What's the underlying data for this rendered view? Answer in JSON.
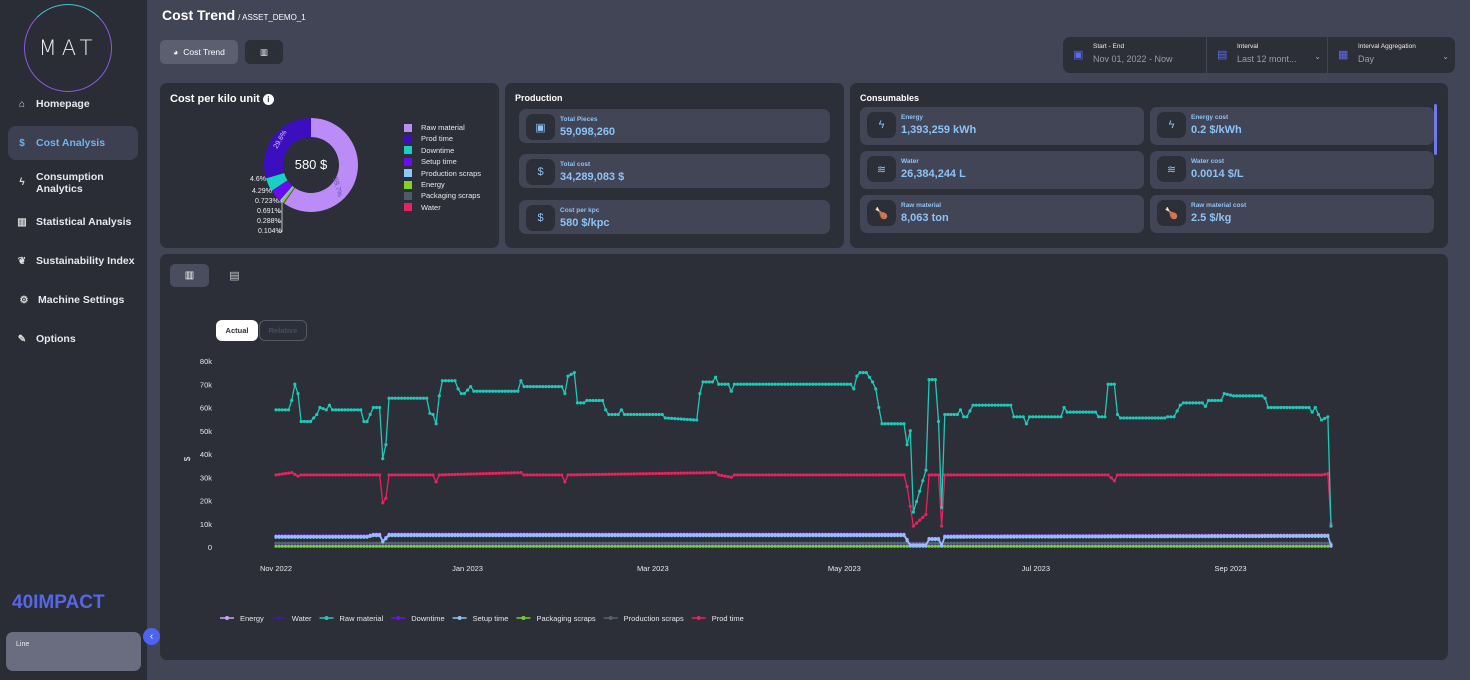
{
  "sidebar": {
    "logo": "MAT",
    "items": [
      {
        "label": "Homepage",
        "icon": "home-icon",
        "glyph": "⌂"
      },
      {
        "label": "Cost Analysis",
        "icon": "money-bag-icon",
        "glyph": "💰",
        "active": true
      },
      {
        "label": "Consumption Analytics",
        "icon": "bolt-icon",
        "glyph": "ϟ"
      },
      {
        "label": "Statistical Analysis",
        "icon": "bar-chart-icon",
        "glyph": "▥"
      },
      {
        "label": "Sustainability Index",
        "icon": "leaf-icon",
        "glyph": "❦"
      },
      {
        "label": "Machine Settings",
        "icon": "gear-icon",
        "glyph": "⚙"
      },
      {
        "label": "Options",
        "icon": "wrench-icon",
        "glyph": "🔧"
      }
    ],
    "brand": "40IMPACT",
    "line_box": "Line",
    "collapse_glyph": "‹"
  },
  "header": {
    "title": "Cost Trend",
    "asset": "/ ASSET_DEMO_1",
    "cost_trend_btn": "Cost Trend"
  },
  "filters": {
    "start_end": {
      "label": "Start - End",
      "value": "Nov 01, 2022 - Now"
    },
    "interval": {
      "label": "Interval",
      "value": "Last 12 mont..."
    },
    "aggregation": {
      "label": "Interval Aggregation",
      "value": "Day"
    }
  },
  "cost_per_kilo": {
    "title": "Cost per kilo unit",
    "center": "580 $",
    "colors": {
      "Raw material": "#bb8cf7",
      "Prod time": "#3b0fbf",
      "Downtime": "#18cfc0",
      "Setup time": "#6a0bf0",
      "Production scraps": "#8cc8fb",
      "Energy": "#7ed321",
      "Packaging scraps": "#4b5b67",
      "Water": "#e8225f"
    },
    "slices": [
      {
        "name": "Raw material",
        "pct": 59.7,
        "label": "59.7%"
      },
      {
        "name": "Water",
        "pct": 0.104,
        "label": "0.104%"
      },
      {
        "name": "Packaging scraps",
        "pct": 0.288,
        "label": "0.288%"
      },
      {
        "name": "Energy",
        "pct": 0.691,
        "label": "0.691%"
      },
      {
        "name": "Production scraps",
        "pct": 0.723,
        "label": "0.723%"
      },
      {
        "name": "Setup time",
        "pct": 4.29,
        "label": "4.29%"
      },
      {
        "name": "Downtime",
        "pct": 4.6,
        "label": "4.6%"
      },
      {
        "name": "Prod time",
        "pct": 29.6,
        "label": "29.6%"
      }
    ],
    "legend": [
      "Raw material",
      "Prod time",
      "Downtime",
      "Setup time",
      "Production scraps",
      "Energy",
      "Packaging scraps",
      "Water"
    ]
  },
  "production": {
    "title": "Production",
    "cards": [
      {
        "label": "Total Pieces",
        "value": "59,098,260",
        "icon": "archive-box-icon",
        "glyph": "▣"
      },
      {
        "label": "Total cost",
        "value": "34,289,083 $",
        "icon": "money-bag-icon",
        "glyph": "$"
      },
      {
        "label": "Cost per kpc",
        "value": "580 $/kpc",
        "icon": "money-bag-icon",
        "glyph": "$"
      }
    ]
  },
  "consumables": {
    "title": "Consumables",
    "cards": [
      {
        "label": "Energy",
        "value": "1,393,259 kWh",
        "icon": "bolt-icon",
        "glyph": "ϟ"
      },
      {
        "label": "Energy cost",
        "value": "0.2 $/kWh",
        "icon": "bolt-icon",
        "glyph": "ϟ"
      },
      {
        "label": "Water",
        "value": "26,384,244 L",
        "icon": "water-waves-icon",
        "glyph": "≋"
      },
      {
        "label": "Water cost",
        "value": "0.0014 $/L",
        "icon": "water-waves-icon",
        "glyph": "≋"
      },
      {
        "label": "Raw material",
        "value": "8,063 ton",
        "icon": "chicken-icon",
        "glyph": "🍗"
      },
      {
        "label": "Raw material cost",
        "value": "2.5 $/kg",
        "icon": "chicken-icon",
        "glyph": "🍗"
      }
    ]
  },
  "chart_panel": {
    "actual": "Actual",
    "relative": "Relative"
  },
  "chart_data": {
    "type": "line",
    "ylabel": "$",
    "ylim": [
      0,
      80000
    ],
    "yticks": [
      {
        "v": 0,
        "t": "0"
      },
      {
        "v": 10000,
        "t": "10k"
      },
      {
        "v": 20000,
        "t": "20k"
      },
      {
        "v": 30000,
        "t": "30k"
      },
      {
        "v": 40000,
        "t": "40k"
      },
      {
        "v": 50000,
        "t": "50k"
      },
      {
        "v": 60000,
        "t": "60k"
      },
      {
        "v": 70000,
        "t": "70k"
      },
      {
        "v": 80000,
        "t": "80k"
      }
    ],
    "xlim": [
      "2022-11-01",
      "2023-10-03"
    ],
    "xticks": [
      {
        "d": "2022-11-01",
        "t": "Nov 2022"
      },
      {
        "d": "2023-01-01",
        "t": "Jan 2023"
      },
      {
        "d": "2023-03-01",
        "t": "Mar 2023"
      },
      {
        "d": "2023-05-01",
        "t": "May 2023"
      },
      {
        "d": "2023-07-01",
        "t": "Jul 2023"
      },
      {
        "d": "2023-09-01",
        "t": "Sep 2023"
      }
    ],
    "legend_position": "bottom",
    "series": [
      {
        "name": "Energy",
        "color": "#c9a6f5",
        "points": [
          [
            "2022-11-01",
            4.6
          ],
          [
            "2022-11-30",
            4.6
          ],
          [
            "2022-12-02",
            5.4
          ],
          [
            "2022-12-04",
            5.4
          ],
          [
            "2022-12-05",
            2.6
          ],
          [
            "2022-12-07",
            5.4
          ],
          [
            "2023-05-20",
            5.4
          ],
          [
            "2023-05-22",
            1.0
          ],
          [
            "2023-05-27",
            1.0
          ],
          [
            "2023-05-28",
            3.6
          ],
          [
            "2023-05-31",
            3.6
          ],
          [
            "2023-06-01",
            1.0
          ],
          [
            "2023-06-02",
            4.6
          ],
          [
            "2023-10-02",
            5.0
          ],
          [
            "2023-10-03",
            1.0
          ]
        ]
      },
      {
        "name": "Water",
        "color": "#3b1d9e",
        "points": [
          [
            "2022-11-01",
            1.0
          ],
          [
            "2023-10-03",
            1.0
          ]
        ]
      },
      {
        "name": "Raw material",
        "color": "#1fc9b8",
        "points": [
          [
            "2022-11-01",
            59
          ],
          [
            "2022-11-05",
            59
          ],
          [
            "2022-11-06",
            63
          ],
          [
            "2022-11-07",
            70
          ],
          [
            "2022-11-08",
            66
          ],
          [
            "2022-11-09",
            54
          ],
          [
            "2022-11-12",
            54
          ],
          [
            "2022-11-14",
            57
          ],
          [
            "2022-11-15",
            60
          ],
          [
            "2022-11-17",
            59
          ],
          [
            "2022-11-18",
            61
          ],
          [
            "2022-11-19",
            59
          ],
          [
            "2022-11-28",
            59
          ],
          [
            "2022-11-29",
            54
          ],
          [
            "2022-11-30",
            54
          ],
          [
            "2022-12-02",
            60
          ],
          [
            "2022-12-04",
            60
          ],
          [
            "2022-12-05",
            38
          ],
          [
            "2022-12-06",
            44
          ],
          [
            "2022-12-07",
            64
          ],
          [
            "2022-12-19",
            64
          ],
          [
            "2022-12-20",
            57.5
          ],
          [
            "2022-12-21",
            57
          ],
          [
            "2022-12-22",
            53
          ],
          [
            "2022-12-23",
            65
          ],
          [
            "2022-12-24",
            71.5
          ],
          [
            "2022-12-28",
            71.5
          ],
          [
            "2022-12-29",
            68
          ],
          [
            "2022-12-30",
            66
          ],
          [
            "2022-12-31",
            66
          ],
          [
            "2023-01-02",
            69
          ],
          [
            "2023-01-03",
            67
          ],
          [
            "2023-01-17",
            67
          ],
          [
            "2023-01-18",
            71.5
          ],
          [
            "2023-01-19",
            69
          ],
          [
            "2023-01-31",
            69
          ],
          [
            "2023-02-01",
            66
          ],
          [
            "2023-02-02",
            73.5
          ],
          [
            "2023-02-04",
            75
          ],
          [
            "2023-02-05",
            62
          ],
          [
            "2023-02-07",
            62
          ],
          [
            "2023-02-08",
            63
          ],
          [
            "2023-02-13",
            63
          ],
          [
            "2023-02-14",
            59
          ],
          [
            "2023-02-15",
            57
          ],
          [
            "2023-02-18",
            57
          ],
          [
            "2023-02-19",
            59
          ],
          [
            "2023-02-20",
            57
          ],
          [
            "2023-03-04",
            57
          ],
          [
            "2023-03-05",
            55.5
          ],
          [
            "2023-03-15",
            54.6
          ],
          [
            "2023-03-16",
            66
          ],
          [
            "2023-03-17",
            71
          ],
          [
            "2023-03-20",
            71
          ],
          [
            "2023-03-21",
            73
          ],
          [
            "2023-03-22",
            70
          ],
          [
            "2023-03-25",
            70
          ],
          [
            "2023-03-26",
            67
          ],
          [
            "2023-03-27",
            70
          ],
          [
            "2023-05-03",
            70
          ],
          [
            "2023-05-04",
            68
          ],
          [
            "2023-05-05",
            73.5
          ],
          [
            "2023-05-06",
            75
          ],
          [
            "2023-05-08",
            75
          ],
          [
            "2023-05-09",
            73
          ],
          [
            "2023-05-10",
            71
          ],
          [
            "2023-05-11",
            68
          ],
          [
            "2023-05-12",
            60
          ],
          [
            "2023-05-13",
            53
          ],
          [
            "2023-05-20",
            53
          ],
          [
            "2023-05-21",
            44
          ],
          [
            "2023-05-22",
            50
          ],
          [
            "2023-05-23",
            15
          ],
          [
            "2023-05-27",
            33
          ],
          [
            "2023-05-28",
            72
          ],
          [
            "2023-05-30",
            72
          ],
          [
            "2023-05-31",
            54
          ],
          [
            "2023-06-01",
            17
          ],
          [
            "2023-06-02",
            57
          ],
          [
            "2023-06-06",
            57
          ],
          [
            "2023-06-07",
            59
          ],
          [
            "2023-06-08",
            56
          ],
          [
            "2023-06-09",
            56
          ],
          [
            "2023-06-11",
            61
          ],
          [
            "2023-06-23",
            61
          ],
          [
            "2023-06-24",
            56
          ],
          [
            "2023-06-27",
            56
          ],
          [
            "2023-06-28",
            53
          ],
          [
            "2023-06-29",
            56
          ],
          [
            "2023-07-09",
            56
          ],
          [
            "2023-07-10",
            60
          ],
          [
            "2023-07-11",
            58
          ],
          [
            "2023-07-20",
            58
          ],
          [
            "2023-07-21",
            56
          ],
          [
            "2023-07-23",
            56
          ],
          [
            "2023-07-24",
            70
          ],
          [
            "2023-07-26",
            70
          ],
          [
            "2023-07-27",
            57
          ],
          [
            "2023-07-28",
            55.5
          ],
          [
            "2023-08-11",
            55.5
          ],
          [
            "2023-08-12",
            56
          ],
          [
            "2023-08-14",
            56
          ],
          [
            "2023-08-16",
            61
          ],
          [
            "2023-08-17",
            62
          ],
          [
            "2023-08-23",
            62
          ],
          [
            "2023-08-24",
            60.5
          ],
          [
            "2023-08-25",
            63
          ],
          [
            "2023-08-29",
            63
          ],
          [
            "2023-08-30",
            66
          ],
          [
            "2023-09-02",
            65
          ],
          [
            "2023-09-11",
            65
          ],
          [
            "2023-09-12",
            64
          ],
          [
            "2023-09-13",
            60
          ],
          [
            "2023-09-26",
            60
          ],
          [
            "2023-09-27",
            58
          ],
          [
            "2023-09-28",
            60
          ],
          [
            "2023-09-29",
            57
          ],
          [
            "2023-09-30",
            54.6
          ],
          [
            "2023-10-02",
            56
          ],
          [
            "2023-10-03",
            9
          ]
        ]
      },
      {
        "name": "Downtime",
        "color": "#6a14e8",
        "points": [
          [
            "2022-11-01",
            4.9
          ],
          [
            "2022-11-30",
            4.9
          ],
          [
            "2022-12-02",
            5.6
          ],
          [
            "2022-12-04",
            5.6
          ],
          [
            "2022-12-05",
            2.8
          ],
          [
            "2022-12-07",
            5.6
          ],
          [
            "2023-05-20",
            5.6
          ],
          [
            "2023-05-22",
            1.2
          ],
          [
            "2023-05-27",
            1.2
          ],
          [
            "2023-05-28",
            3.8
          ],
          [
            "2023-05-31",
            3.8
          ],
          [
            "2023-06-01",
            1.2
          ],
          [
            "2023-06-02",
            4.9
          ],
          [
            "2023-10-02",
            5.3
          ],
          [
            "2023-10-03",
            1.2
          ]
        ]
      },
      {
        "name": "Setup time",
        "color": "#8cc3f5",
        "points": [
          [
            "2022-11-01",
            4.2
          ],
          [
            "2022-11-30",
            4.2
          ],
          [
            "2022-12-02",
            4.9
          ],
          [
            "2022-12-04",
            4.9
          ],
          [
            "2022-12-05",
            2.2
          ],
          [
            "2022-12-07",
            4.9
          ],
          [
            "2023-05-20",
            4.9
          ],
          [
            "2023-05-22",
            0.5
          ],
          [
            "2023-05-27",
            0.5
          ],
          [
            "2023-05-28",
            3.2
          ],
          [
            "2023-05-31",
            3.2
          ],
          [
            "2023-06-01",
            0.5
          ],
          [
            "2023-06-02",
            4.2
          ],
          [
            "2023-10-02",
            4.6
          ],
          [
            "2023-10-03",
            0.5
          ]
        ]
      },
      {
        "name": "Packaging scraps",
        "color": "#6fd12e",
        "points": [
          [
            "2022-11-01",
            0.3
          ],
          [
            "2023-10-03",
            0.3
          ]
        ]
      },
      {
        "name": "Production scraps",
        "color": "#56646e",
        "points": [
          [
            "2022-11-01",
            1.6
          ],
          [
            "2023-10-03",
            1.6
          ]
        ]
      },
      {
        "name": "Prod time",
        "color": "#e8225f",
        "points": [
          [
            "2022-11-01",
            31
          ],
          [
            "2022-11-06",
            32
          ],
          [
            "2022-11-08",
            30.5
          ],
          [
            "2022-11-09",
            31
          ],
          [
            "2022-12-04",
            31
          ],
          [
            "2022-12-05",
            19
          ],
          [
            "2022-12-06",
            21
          ],
          [
            "2022-12-07",
            31
          ],
          [
            "2022-12-21",
            31
          ],
          [
            "2022-12-22",
            28
          ],
          [
            "2022-12-23",
            31
          ],
          [
            "2023-01-18",
            32
          ],
          [
            "2023-01-19",
            31
          ],
          [
            "2023-01-31",
            31
          ],
          [
            "2023-02-01",
            28
          ],
          [
            "2023-02-02",
            31
          ],
          [
            "2023-03-21",
            32
          ],
          [
            "2023-03-22",
            31
          ],
          [
            "2023-03-26",
            30
          ],
          [
            "2023-03-27",
            31
          ],
          [
            "2023-05-20",
            31
          ],
          [
            "2023-05-21",
            26
          ],
          [
            "2023-05-23",
            9
          ],
          [
            "2023-05-27",
            14
          ],
          [
            "2023-05-28",
            31
          ],
          [
            "2023-05-31",
            31
          ],
          [
            "2023-06-01",
            9
          ],
          [
            "2023-06-02",
            31
          ],
          [
            "2023-07-24",
            31
          ],
          [
            "2023-07-26",
            28.5
          ],
          [
            "2023-07-27",
            31
          ],
          [
            "2023-09-30",
            31
          ],
          [
            "2023-10-02",
            31.5
          ],
          [
            "2023-10-03",
            10
          ]
        ]
      }
    ],
    "value_unit_multiplier": 1000
  }
}
